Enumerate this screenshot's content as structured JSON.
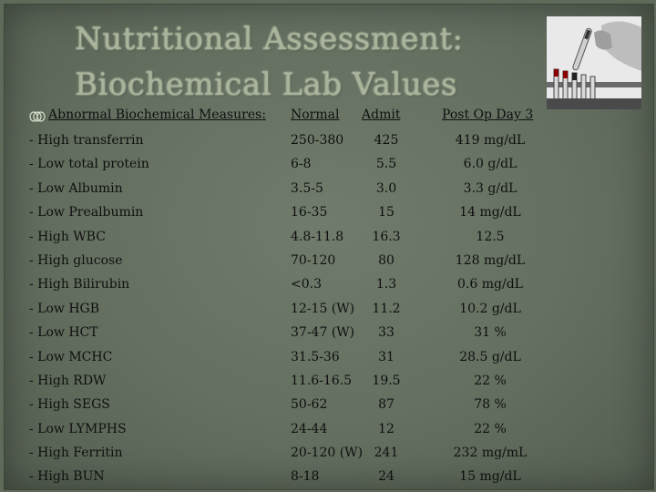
{
  "title": {
    "line1": "Nutritional Assessment:",
    "line2": "Biochemical Lab Values"
  },
  "header": {
    "label": "Abnormal Biochemical Measures:",
    "normal": "Normal",
    "admit": "Admit",
    "post_op": "Post Op Day 3"
  },
  "rows": [
    {
      "label": "- High transferrin",
      "normal": "250-380",
      "admit": "425",
      "post": "419  mg/dL"
    },
    {
      "label": "- Low total protein",
      "normal": "6-8",
      "admit": "5.5",
      "post": "6.0  g/dL"
    },
    {
      "label": "- Low Albumin",
      "normal": "3.5-5",
      "admit": "3.0",
      "post": "3.3  g/dL"
    },
    {
      "label": "- Low Prealbumin",
      "normal": "16-35",
      "admit": "15",
      "post": "14  mg/dL"
    },
    {
      "label": "- High WBC",
      "normal": "4.8-11.8",
      "admit": "16.3",
      "post": "12.5"
    },
    {
      "label": "- High glucose",
      "normal": "70-120",
      "admit": "80",
      "post": "128 mg/dL"
    },
    {
      "label": "- High Bilirubin",
      "normal": "<0.3",
      "admit": "1.3",
      "post": "0.6 mg/dL"
    },
    {
      "label": "- Low HGB",
      "normal": "12-15 (W)",
      "admit": "11.2",
      "post": "10.2 g/dL"
    },
    {
      "label": "- Low HCT",
      "normal": "37-47 (W)",
      "admit": "33",
      "post": "31 %"
    },
    {
      "label": "- Low MCHC",
      "normal": "31.5-36",
      "admit": "31",
      "post": "28.5 g/dL"
    },
    {
      "label": "- High RDW",
      "normal": "11.6-16.5",
      "admit": "19.5",
      "post": "22 %"
    },
    {
      "label": "- High SEGS",
      "normal": "50-62",
      "admit": "87",
      "post": "78 %"
    },
    {
      "label": "- Low LYMPHS",
      "normal": "24-44",
      "admit": "12",
      "post": "22 %"
    },
    {
      "label": "- High Ferritin",
      "normal": "20-120 (W)",
      "admit": "241",
      "post": "232 mg/mL"
    },
    {
      "label": "- High BUN",
      "normal": "8-18",
      "admit": "24",
      "post": "15  mg/dL"
    }
  ]
}
